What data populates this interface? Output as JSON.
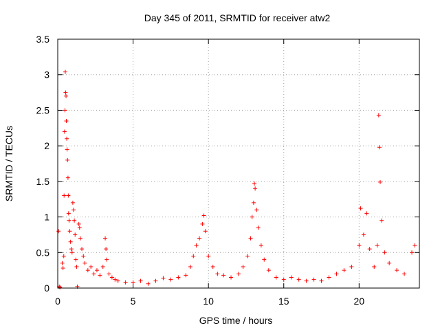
{
  "chart_data": {
    "type": "scatter",
    "title": "Day 345 of 2011, SRMTID for receiver atw2",
    "xlabel": "GPS time / hours",
    "ylabel": "SRMTID / TECUs",
    "xlim": [
      0,
      24
    ],
    "ylim": [
      0,
      3.5
    ],
    "xticks": [
      0,
      5,
      10,
      15,
      20
    ],
    "xtick_labels": [
      "0",
      "5",
      "10",
      "15",
      "20"
    ],
    "yticks": [
      0,
      0.5,
      1,
      1.5,
      2,
      2.5,
      3,
      3.5
    ],
    "ytick_labels": [
      "0",
      "0.5",
      "1",
      "1.5",
      "2",
      "2.5",
      "3",
      "3.5"
    ],
    "grid": true,
    "marker": "+",
    "series": [
      {
        "name": "SRMTID",
        "color": "#ff0000",
        "points": [
          [
            0.05,
            0.8
          ],
          [
            0.1,
            0.02
          ],
          [
            0.15,
            0.01
          ],
          [
            0.3,
            0.35
          ],
          [
            0.35,
            0.28
          ],
          [
            0.4,
            0.45
          ],
          [
            0.42,
            1.3
          ],
          [
            0.45,
            2.2
          ],
          [
            0.48,
            2.5
          ],
          [
            0.5,
            3.04
          ],
          [
            0.52,
            2.75
          ],
          [
            0.55,
            2.7
          ],
          [
            0.57,
            2.35
          ],
          [
            0.6,
            2.1
          ],
          [
            0.62,
            1.95
          ],
          [
            0.65,
            1.8
          ],
          [
            0.68,
            1.55
          ],
          [
            0.7,
            1.3
          ],
          [
            0.72,
            1.05
          ],
          [
            0.75,
            0.95
          ],
          [
            0.8,
            0.8
          ],
          [
            0.85,
            0.65
          ],
          [
            0.9,
            0.55
          ],
          [
            0.95,
            0.5
          ],
          [
            1.0,
            1.2
          ],
          [
            1.05,
            1.1
          ],
          [
            1.1,
            0.95
          ],
          [
            1.15,
            0.75
          ],
          [
            1.2,
            0.4
          ],
          [
            1.25,
            0.3
          ],
          [
            1.3,
            0.02
          ],
          [
            1.4,
            0.9
          ],
          [
            1.45,
            0.85
          ],
          [
            1.5,
            0.7
          ],
          [
            1.6,
            0.55
          ],
          [
            1.7,
            0.45
          ],
          [
            1.8,
            0.35
          ],
          [
            2.0,
            0.25
          ],
          [
            2.2,
            0.3
          ],
          [
            2.4,
            0.2
          ],
          [
            2.6,
            0.25
          ],
          [
            2.8,
            0.18
          ],
          [
            3.0,
            0.3
          ],
          [
            3.15,
            0.7
          ],
          [
            3.2,
            0.55
          ],
          [
            3.25,
            0.4
          ],
          [
            3.4,
            0.2
          ],
          [
            3.6,
            0.15
          ],
          [
            3.8,
            0.12
          ],
          [
            4.0,
            0.1
          ],
          [
            4.5,
            0.08
          ],
          [
            5.0,
            0.08
          ],
          [
            5.5,
            0.1
          ],
          [
            6.0,
            0.06
          ],
          [
            6.5,
            0.1
          ],
          [
            7.0,
            0.14
          ],
          [
            7.5,
            0.12
          ],
          [
            8.0,
            0.15
          ],
          [
            8.5,
            0.18
          ],
          [
            8.8,
            0.3
          ],
          [
            9.0,
            0.45
          ],
          [
            9.2,
            0.6
          ],
          [
            9.4,
            0.7
          ],
          [
            9.6,
            0.9
          ],
          [
            9.7,
            1.02
          ],
          [
            9.8,
            0.8
          ],
          [
            10.0,
            0.45
          ],
          [
            10.3,
            0.3
          ],
          [
            10.6,
            0.2
          ],
          [
            11.0,
            0.18
          ],
          [
            11.5,
            0.15
          ],
          [
            12.0,
            0.2
          ],
          [
            12.3,
            0.3
          ],
          [
            12.6,
            0.45
          ],
          [
            12.8,
            0.7
          ],
          [
            12.9,
            1.0
          ],
          [
            13.0,
            1.2
          ],
          [
            13.05,
            1.47
          ],
          [
            13.1,
            1.4
          ],
          [
            13.2,
            1.1
          ],
          [
            13.3,
            0.85
          ],
          [
            13.5,
            0.6
          ],
          [
            13.7,
            0.4
          ],
          [
            14.0,
            0.25
          ],
          [
            14.5,
            0.15
          ],
          [
            15.0,
            0.12
          ],
          [
            15.5,
            0.15
          ],
          [
            16.0,
            0.12
          ],
          [
            16.5,
            0.1
          ],
          [
            17.0,
            0.12
          ],
          [
            17.5,
            0.1
          ],
          [
            18.0,
            0.15
          ],
          [
            18.5,
            0.2
          ],
          [
            19.0,
            0.25
          ],
          [
            19.5,
            0.3
          ],
          [
            20.0,
            0.6
          ],
          [
            20.1,
            1.12
          ],
          [
            20.3,
            0.75
          ],
          [
            20.5,
            1.05
          ],
          [
            20.7,
            0.55
          ],
          [
            21.0,
            0.3
          ],
          [
            21.2,
            0.6
          ],
          [
            21.3,
            2.43
          ],
          [
            21.35,
            1.98
          ],
          [
            21.4,
            1.49
          ],
          [
            21.5,
            0.95
          ],
          [
            21.7,
            0.5
          ],
          [
            22.0,
            0.35
          ],
          [
            22.5,
            0.25
          ],
          [
            23.0,
            0.2
          ],
          [
            23.5,
            0.5
          ],
          [
            23.7,
            0.6
          ]
        ]
      }
    ]
  }
}
